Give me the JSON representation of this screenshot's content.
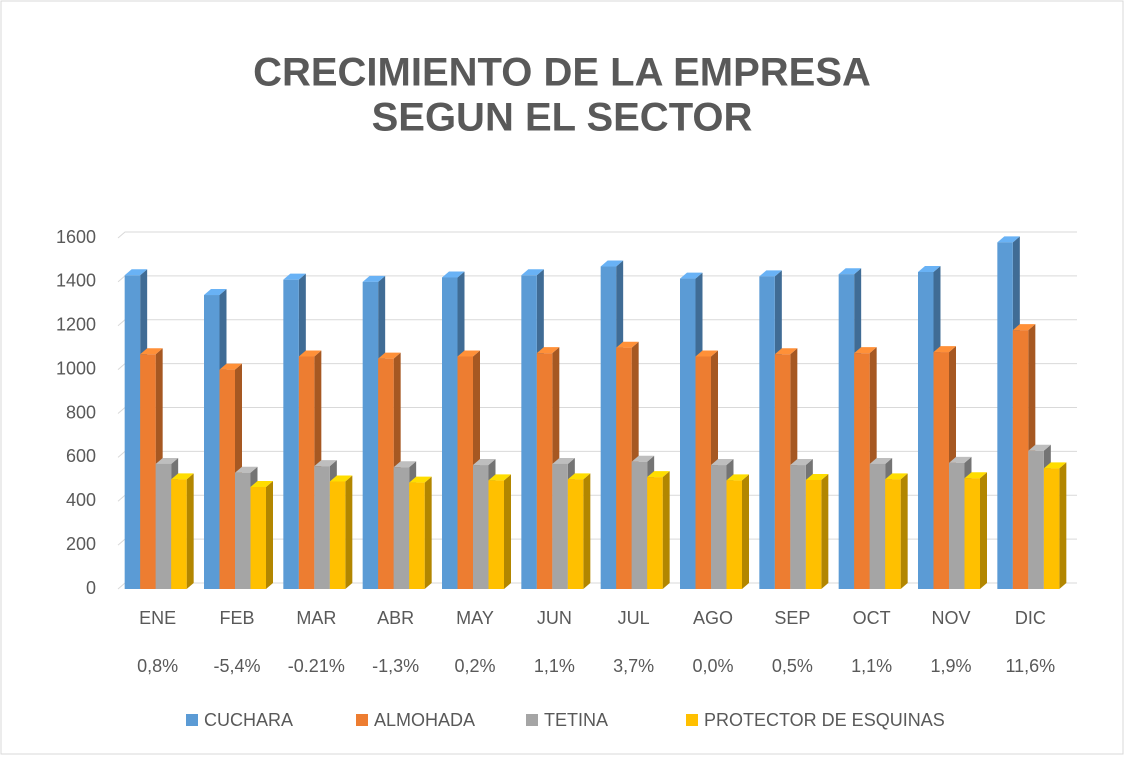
{
  "chart_data": {
    "type": "bar3d",
    "title": [
      "CRECIMIENTO DE LA EMPRESA",
      "SEGUN EL SECTOR"
    ],
    "categories": [
      "ENE",
      "FEB",
      "MAR",
      "ABR",
      "MAY",
      "JUN",
      "JUL",
      "AGO",
      "SEP",
      "OCT",
      "NOV",
      "DIC"
    ],
    "category_notes": [
      "0,8%",
      "-5,4%",
      "-0.21%",
      "-1,3%",
      "0,2%",
      "1,1%",
      "3,7%",
      "0,0%",
      "0,5%",
      "1,1%",
      "1,9%",
      "11,6%"
    ],
    "series": [
      {
        "name": "CUCHARA",
        "color": "#5b9bd5",
        "values": [
          1430,
          1340,
          1410,
          1400,
          1420,
          1430,
          1470,
          1415,
          1425,
          1435,
          1445,
          1580
        ]
      },
      {
        "name": "ALMOHADA",
        "color": "#ed7d31",
        "values": [
          1070,
          1000,
          1060,
          1050,
          1060,
          1075,
          1100,
          1060,
          1070,
          1075,
          1080,
          1180
        ]
      },
      {
        "name": "TETINA",
        "color": "#a5a5a5",
        "values": [
          570,
          530,
          560,
          555,
          565,
          570,
          580,
          565,
          565,
          570,
          575,
          630
        ]
      },
      {
        "name": "PROTECTOR DE ESQUINAS",
        "color": "#ffc000",
        "values": [
          500,
          465,
          490,
          485,
          495,
          500,
          510,
          495,
          497,
          500,
          505,
          550
        ]
      }
    ],
    "ylim": [
      0,
      1600
    ],
    "yticks": [
      0,
      200,
      400,
      600,
      800,
      1000,
      1200,
      1400,
      1600
    ],
    "grid": true
  }
}
